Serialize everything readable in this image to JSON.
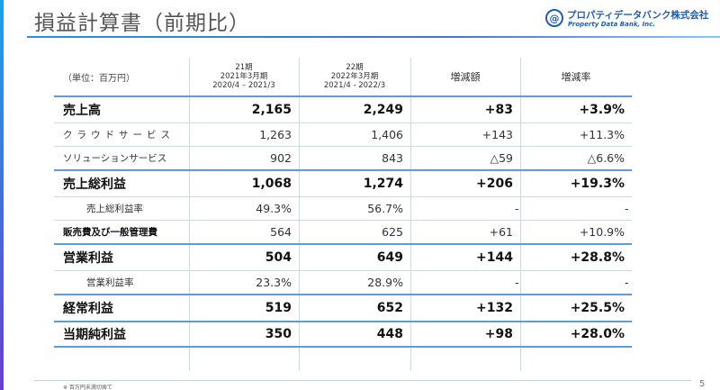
{
  "title": "損益計算書（前期比）",
  "logo": {
    "jp": "プロパティデータバンク株式会社",
    "en": "Property Data Bank, Inc.",
    "mark": "@"
  },
  "header": {
    "unit": "（単位：百万円）",
    "fy21": {
      "line1": "21期",
      "line2": "2021年3月期",
      "line3": "2020/4 – 2021/3"
    },
    "fy22": {
      "line1": "22期",
      "line2": "2022年3月期",
      "line3": "2021/4 - 2022/3"
    },
    "diff": "増減額",
    "rate": "増減率"
  },
  "rows": [
    {
      "label": "売上高",
      "fy21": "2,165",
      "fy22": "2,249",
      "diff": "+83",
      "rate": "+3.9%"
    },
    {
      "label": "クラウドサービス",
      "fy21": "1,263",
      "fy22": "1,406",
      "diff": "+143",
      "rate": "+11.3%"
    },
    {
      "label": "ソリューションサービス",
      "fy21": "902",
      "fy22": "843",
      "diff": "△59",
      "rate": "△6.6%"
    },
    {
      "label": "売上総利益",
      "fy21": "1,068",
      "fy22": "1,274",
      "diff": "+206",
      "rate": "+19.3%"
    },
    {
      "label": "売上総利益率",
      "fy21": "49.3%",
      "fy22": "56.7%",
      "diff": "-",
      "rate": "-"
    },
    {
      "label": "販売費及び一般管理費",
      "fy21": "564",
      "fy22": "625",
      "diff": "+61",
      "rate": "+10.9%"
    },
    {
      "label": "営業利益",
      "fy21": "504",
      "fy22": "649",
      "diff": "+144",
      "rate": "+28.8%"
    },
    {
      "label": "営業利益率",
      "fy21": "23.3%",
      "fy22": "28.9%",
      "diff": "-",
      "rate": "-"
    },
    {
      "label": "経常利益",
      "fy21": "519",
      "fy22": "652",
      "diff": "+132",
      "rate": "+25.5%"
    },
    {
      "label": "当期純利益",
      "fy21": "350",
      "fy22": "448",
      "diff": "+98",
      "rate": "+28.0%"
    }
  ],
  "footnote": "※ 百万円未満切捨て",
  "page_number": "5",
  "colors": {
    "accent": "#1d5fb4",
    "rule": "#5c9cd9",
    "title_rule": "#2a8fe0"
  }
}
